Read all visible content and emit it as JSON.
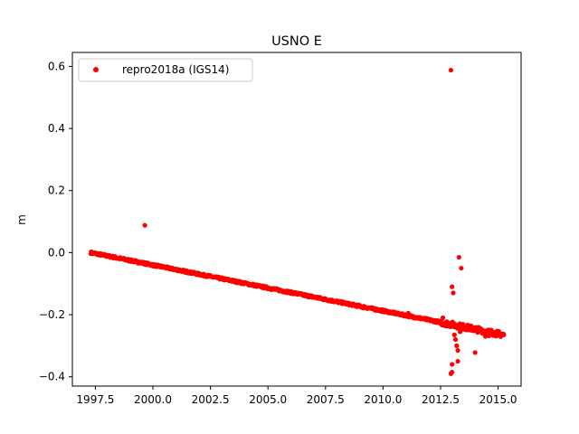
{
  "chart_data": {
    "type": "scatter",
    "title": "USNO E",
    "xlabel": "",
    "ylabel": "m",
    "xlim": [
      1996.5,
      2016.0
    ],
    "ylim": [
      -0.43,
      0.645
    ],
    "xticks": [
      1997.5,
      2000.0,
      2002.5,
      2005.0,
      2007.5,
      2010.0,
      2012.5,
      2015.0
    ],
    "xtick_labels": [
      "1997.5",
      "2000.0",
      "2002.5",
      "2005.0",
      "2007.5",
      "2010.0",
      "2012.5",
      "2015.0"
    ],
    "yticks": [
      -0.4,
      -0.2,
      0.0,
      0.2,
      0.4,
      0.6
    ],
    "ytick_labels": [
      "−0.4",
      "−0.2",
      "0.0",
      "0.2",
      "0.4",
      "0.6"
    ],
    "grid": false,
    "legend_placement": "top-left",
    "series": [
      {
        "name": "repro2018a (IGS14)",
        "color": "#ff0000",
        "marker": "circle",
        "trend": {
          "x_start": 1997.3,
          "y_start": 0.0,
          "x_end": 2015.25,
          "y_end": -0.265
        },
        "outliers": [
          [
            1999.65,
            0.088
          ],
          [
            2011.1,
            -0.195
          ],
          [
            2012.95,
            0.588
          ],
          [
            2013.0,
            -0.11
          ],
          [
            2013.05,
            -0.13
          ],
          [
            2013.1,
            -0.265
          ],
          [
            2013.15,
            -0.28
          ],
          [
            2013.3,
            -0.015
          ],
          [
            2013.4,
            -0.05
          ],
          [
            2013.2,
            -0.3
          ],
          [
            2013.25,
            -0.315
          ],
          [
            2013.0,
            -0.36
          ],
          [
            2013.0,
            -0.385
          ],
          [
            2012.95,
            -0.39
          ],
          [
            2013.25,
            -0.35
          ],
          [
            2014.0,
            -0.322
          ],
          [
            2013.15,
            -0.24
          ],
          [
            2013.35,
            -0.255
          ],
          [
            2014.45,
            -0.27
          ],
          [
            2014.6,
            -0.268
          ],
          [
            2012.6,
            -0.21
          ]
        ]
      }
    ]
  }
}
